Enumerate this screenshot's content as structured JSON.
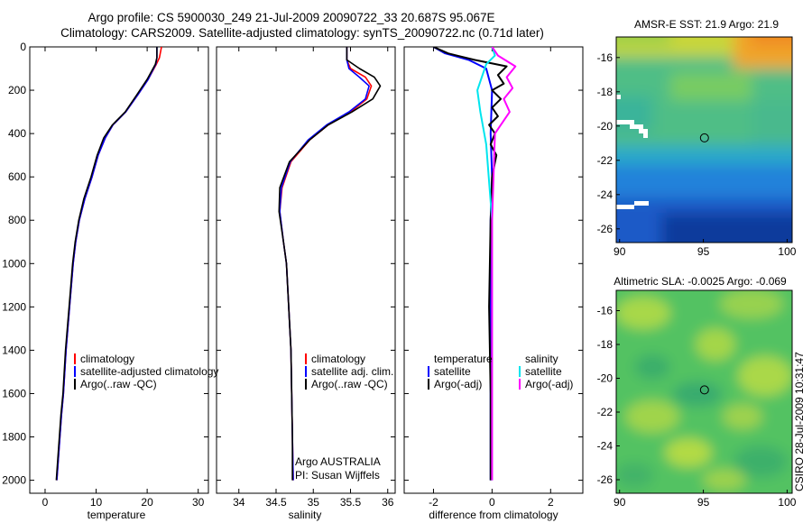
{
  "header": {
    "title_line1": "Argo profile: CS 5900030_249 21-Jul-2009 20090722_33 20.687S 95.067E",
    "title_line2": "Climatology: CARS2009. Satellite-adjusted climatology: synTS_20090722.nc (0.71d later)"
  },
  "colors": {
    "climatology": "#ff0000",
    "satellite": "#0000ff",
    "argo": "#000000",
    "satellite_salinity": "#00e5ee",
    "argo_salinity": "#ff00ff"
  },
  "panels": {
    "temperature": {
      "xlabel": "temperature",
      "legend": [
        "climatology",
        "satellite-adjusted climatology",
        "Argo(..raw -QC)"
      ]
    },
    "salinity": {
      "xlabel": "salinity",
      "legend": [
        "climatology",
        "satellite adj. clim.",
        "Argo(..raw -QC)"
      ],
      "note_line1": "Argo AUSTRALIA",
      "note_line2": "PI: Susan Wijffels"
    },
    "difference": {
      "xlabel": "difference from climatology",
      "legend_temperature_title": "temperature",
      "legend_salinity_title": "salinity",
      "legend_satellite": "satellite",
      "legend_argo": "Argo(-adj)"
    },
    "sst_map": {
      "title": "AMSR-E SST: 21.9 Argo: 21.9"
    },
    "sla_map": {
      "title": "Altimetric SLA: -0.0025 Argo: -0.069"
    }
  },
  "stamp": "CSIRO 28-Jul-2009 10:31:47",
  "chart_data": [
    {
      "type": "line",
      "name": "temperature profile",
      "xlabel": "temperature",
      "ylabel": "",
      "xlim": [
        -3,
        32
      ],
      "ylim": [
        2060,
        0
      ],
      "xticks": [
        0,
        10,
        20,
        30
      ],
      "yticks": [
        0,
        200,
        400,
        600,
        800,
        1000,
        1200,
        1400,
        1600,
        1800,
        2000
      ],
      "series": [
        {
          "name": "climatology",
          "color": "#ff0000",
          "x": [
            22.8,
            22.4,
            21.8,
            20.2,
            18.2,
            15.8,
            13.3,
            11.8,
            10.4,
            9.2,
            7.8,
            6.7,
            6.0,
            5.5,
            4.8,
            4.1,
            3.6,
            3.2,
            2.9,
            2.6,
            2.3
          ],
          "y": [
            0,
            50,
            80,
            150,
            220,
            300,
            360,
            420,
            500,
            600,
            700,
            800,
            900,
            1000,
            1200,
            1400,
            1600,
            1700,
            1800,
            1900,
            2000
          ]
        },
        {
          "name": "satellite-adjusted climatology",
          "color": "#0000ff",
          "x": [
            21.9,
            21.9,
            21.7,
            20.2,
            18.2,
            15.8,
            13.3,
            11.8,
            10.4,
            9.2,
            7.8,
            6.7,
            6.0,
            5.5,
            4.8,
            4.1,
            3.6,
            3.2,
            2.9,
            2.6,
            2.3
          ],
          "y": [
            0,
            50,
            80,
            150,
            220,
            300,
            360,
            420,
            500,
            600,
            700,
            800,
            900,
            1000,
            1200,
            1400,
            1600,
            1700,
            1800,
            1900,
            2000
          ]
        },
        {
          "name": "Argo(..raw -QC)",
          "color": "#000000",
          "x": [
            21.9,
            21.9,
            21.6,
            20.0,
            18.0,
            15.7,
            13.2,
            11.5,
            10.2,
            9.0,
            7.6,
            6.6,
            5.9,
            5.4,
            4.7,
            4.0,
            3.5,
            3.1,
            2.8,
            2.5,
            2.2
          ],
          "y": [
            0,
            50,
            80,
            150,
            220,
            300,
            360,
            420,
            500,
            600,
            700,
            800,
            900,
            1000,
            1200,
            1400,
            1600,
            1700,
            1800,
            1900,
            2000
          ]
        }
      ]
    },
    {
      "type": "line",
      "name": "salinity profile",
      "xlabel": "salinity",
      "ylabel": "",
      "xlim": [
        33.7,
        36.1
      ],
      "ylim": [
        2060,
        0
      ],
      "xticks": [
        34,
        34.5,
        35,
        35.5,
        36
      ],
      "series": [
        {
          "name": "climatology",
          "color": "#ff0000",
          "x": [
            35.45,
            35.45,
            35.5,
            35.7,
            35.78,
            35.72,
            35.5,
            35.2,
            34.95,
            34.7,
            34.58,
            34.55,
            34.6,
            34.64,
            34.67,
            34.7,
            34.71,
            34.72,
            34.73
          ],
          "y": [
            0,
            60,
            100,
            140,
            180,
            240,
            300,
            360,
            430,
            530,
            650,
            760,
            900,
            1000,
            1200,
            1400,
            1600,
            1800,
            2000
          ]
        },
        {
          "name": "satellite adj. clim.",
          "color": "#0000ff",
          "x": [
            35.45,
            35.45,
            35.48,
            35.62,
            35.75,
            35.7,
            35.48,
            35.18,
            34.93,
            34.69,
            34.57,
            34.55,
            34.6,
            34.64,
            34.67,
            34.7,
            34.71,
            34.72,
            34.73
          ],
          "y": [
            0,
            60,
            100,
            140,
            180,
            240,
            300,
            360,
            430,
            530,
            650,
            760,
            900,
            1000,
            1200,
            1400,
            1600,
            1800,
            2000
          ]
        },
        {
          "name": "Argo(..raw -QC)",
          "color": "#000000",
          "x": [
            35.45,
            35.45,
            35.62,
            35.82,
            35.9,
            35.8,
            35.52,
            35.2,
            34.95,
            34.68,
            34.55,
            34.54,
            34.6,
            34.64,
            34.67,
            34.7,
            34.71,
            34.72,
            34.72
          ],
          "y": [
            0,
            60,
            100,
            140,
            180,
            240,
            300,
            360,
            430,
            530,
            650,
            760,
            900,
            1000,
            1200,
            1400,
            1600,
            1800,
            2000
          ]
        }
      ]
    },
    {
      "type": "line",
      "name": "difference from climatology",
      "xlabel": "difference from climatology",
      "xlim": [
        -3,
        3.1
      ],
      "ylim": [
        2060,
        0
      ],
      "xticks": [
        -2,
        0,
        2
      ],
      "series": [
        {
          "name": "temperature satellite",
          "color": "#0000ff",
          "x": [
            -2.0,
            -1.6,
            -0.8,
            -0.2,
            0.0,
            -0.05,
            0.0,
            -0.05,
            -0.05,
            -0.05,
            -0.05,
            -0.05,
            -0.05
          ],
          "y": [
            0,
            30,
            60,
            100,
            200,
            400,
            600,
            800,
            1000,
            1200,
            1400,
            1800,
            2000
          ]
        },
        {
          "name": "temperature Argo(-adj)",
          "color": "#000000",
          "x": [
            -2.0,
            -1.5,
            -0.6,
            0.5,
            0.2,
            0.4,
            0.0,
            0.3,
            0.0,
            0.2,
            -0.1,
            0.1,
            -0.05,
            0.15,
            0.0,
            -0.05,
            -0.1,
            -0.05,
            -0.05
          ],
          "y": [
            0,
            30,
            60,
            90,
            130,
            170,
            200,
            240,
            280,
            320,
            360,
            400,
            450,
            500,
            600,
            800,
            1200,
            1600,
            2000
          ]
        },
        {
          "name": "salinity satellite",
          "color": "#00e5ee",
          "x": [
            0.0,
            0.1,
            -0.2,
            -0.5,
            -0.4,
            -0.2,
            0.0,
            0.0,
            0.0
          ],
          "y": [
            0,
            40,
            80,
            200,
            300,
            450,
            800,
            1400,
            2000
          ]
        },
        {
          "name": "salinity Argo(-adj)",
          "color": "#ff00ff",
          "x": [
            0.0,
            0.2,
            0.8,
            0.5,
            0.7,
            0.4,
            0.6,
            0.1,
            0.0,
            0.0
          ],
          "y": [
            0,
            40,
            90,
            140,
            190,
            240,
            300,
            400,
            800,
            2000
          ]
        }
      ]
    },
    {
      "type": "heatmap",
      "name": "AMSR-E SST",
      "title": "AMSR-E SST: 21.9 Argo: 21.9",
      "xlim": [
        89.8,
        100.3
      ],
      "ylim": [
        -26.8,
        -14.8
      ],
      "xticks": [
        90,
        95,
        100
      ],
      "yticks": [
        -16,
        -18,
        -20,
        -22,
        -24,
        -26
      ],
      "argo_position": [
        95.067,
        -20.687
      ]
    },
    {
      "type": "heatmap",
      "name": "Altimetric SLA",
      "title": "Altimetric SLA: -0.0025 Argo: -0.069",
      "xlim": [
        89.8,
        100.3
      ],
      "ylim": [
        -26.8,
        -14.8
      ],
      "xticks": [
        90,
        95,
        100
      ],
      "yticks": [
        -16,
        -18,
        -20,
        -22,
        -24,
        -26
      ],
      "argo_position": [
        95.067,
        -20.687
      ]
    }
  ]
}
